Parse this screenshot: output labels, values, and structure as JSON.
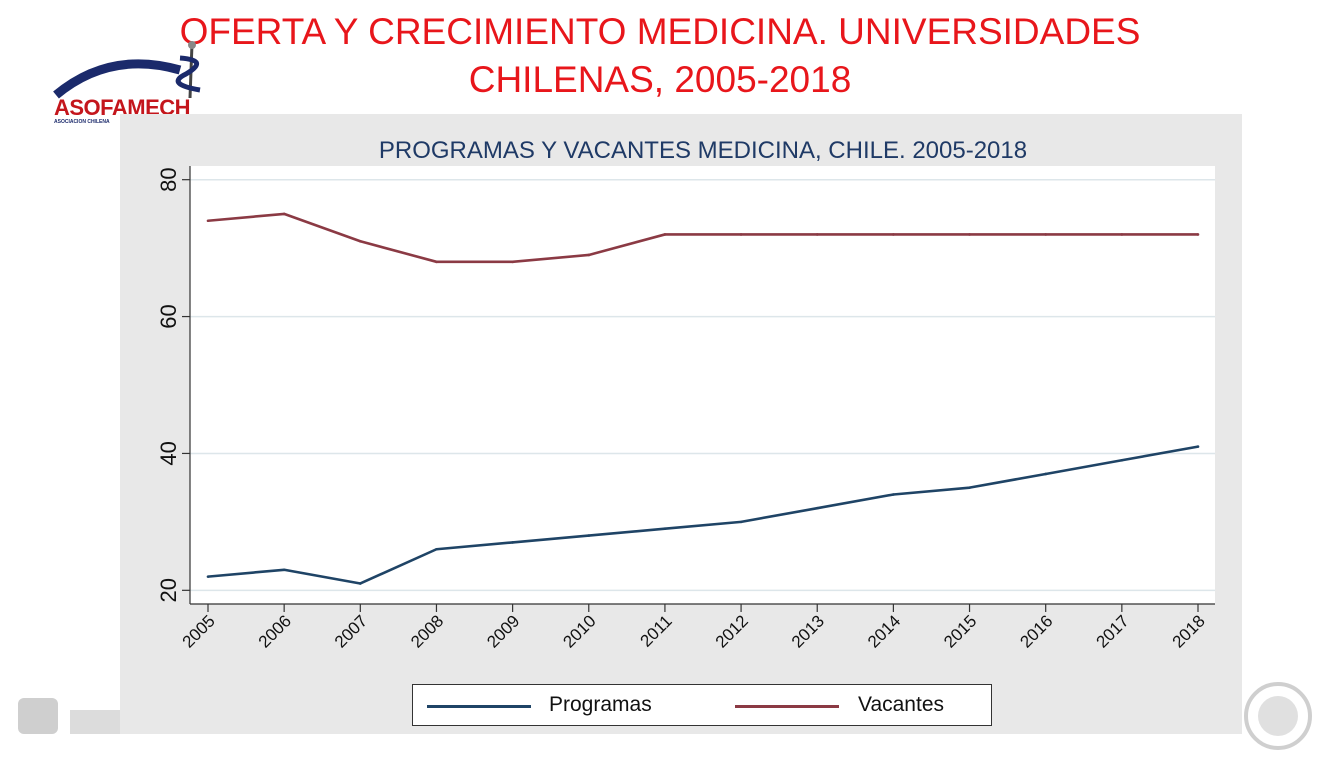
{
  "slide": {
    "title_line1": "OFERTA Y CRECIMIENTO MEDICINA. UNIVERSIDADES",
    "title_line2": "CHILENAS, 2005-2018"
  },
  "logo": {
    "text": "ASOFAMECH",
    "subtext": "ASOCIACION CHILENA"
  },
  "colors": {
    "title": "#e8161b",
    "programas": "#1f4466",
    "vacantes": "#8b3a44",
    "panel": "#e8e8e8"
  },
  "chart_data": {
    "type": "line",
    "title": "PROGRAMAS Y VACANTES MEDICINA, CHILE. 2005-2018",
    "x": [
      "2005",
      "2006",
      "2007",
      "2008",
      "2009",
      "2010",
      "2011",
      "2012",
      "2013",
      "2014",
      "2015",
      "2016",
      "2017",
      "2018"
    ],
    "series": [
      {
        "name": "Programas",
        "values": [
          22,
          23,
          21,
          26,
          27,
          28,
          29,
          30,
          32,
          34,
          35,
          37,
          39,
          41
        ]
      },
      {
        "name": "Vacantes",
        "values": [
          74,
          75,
          71,
          68,
          68,
          69,
          72,
          72,
          72,
          72,
          72,
          72,
          72,
          72
        ]
      }
    ],
    "yticks": [
      20,
      40,
      60,
      80
    ],
    "ylim": [
      18,
      82
    ],
    "grid": true,
    "legend_position": "bottom"
  }
}
